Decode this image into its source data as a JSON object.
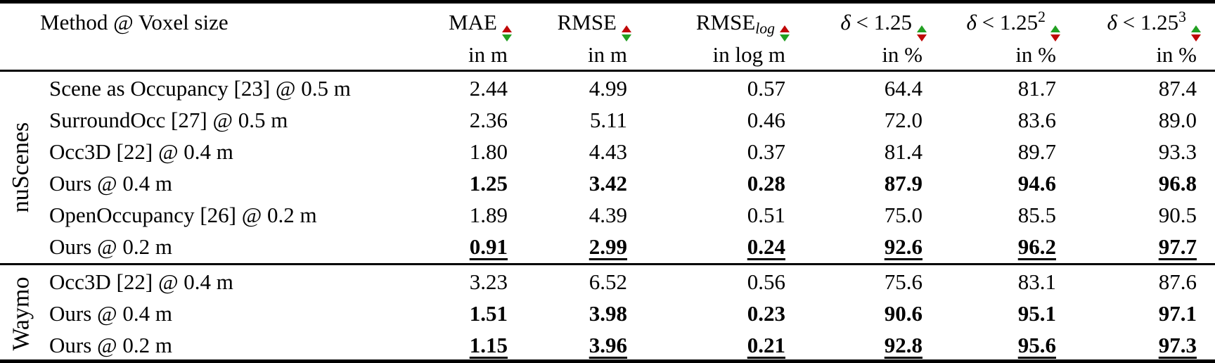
{
  "header": {
    "method_column_label": "Method @ Voxel size",
    "columns": [
      {
        "italic_part": "",
        "name": "MAE",
        "subscript": "",
        "superscript": "",
        "unit": "in m",
        "better": "lower"
      },
      {
        "italic_part": "",
        "name": "RMSE",
        "subscript": "",
        "superscript": "",
        "unit": "in m",
        "better": "lower"
      },
      {
        "italic_part": "",
        "name": "RMSE",
        "subscript": "log",
        "superscript": "",
        "unit": "in log m",
        "better": "lower"
      },
      {
        "italic_part": "δ",
        "name": " < 1.25",
        "subscript": "",
        "superscript": "",
        "unit": "in %",
        "better": "higher"
      },
      {
        "italic_part": "δ",
        "name": " < 1.25",
        "subscript": "",
        "superscript": "2",
        "unit": "in %",
        "better": "higher"
      },
      {
        "italic_part": "δ",
        "name": " < 1.25",
        "subscript": "",
        "superscript": "3",
        "unit": "in %",
        "better": "higher"
      }
    ]
  },
  "sections": [
    {
      "dataset": "nuScenes",
      "rows": [
        {
          "method": "Scene as Occupancy [23] @ 0.5 m",
          "values": [
            "2.44",
            "4.99",
            "0.57",
            "64.4",
            "81.7",
            "87.4"
          ],
          "style": "normal"
        },
        {
          "method": "SurroundOcc [27] @ 0.5 m",
          "values": [
            "2.36",
            "5.11",
            "0.46",
            "72.0",
            "83.6",
            "89.0"
          ],
          "style": "normal"
        },
        {
          "method": "Occ3D [22] @ 0.4 m",
          "values": [
            "1.80",
            "4.43",
            "0.37",
            "81.4",
            "89.7",
            "93.3"
          ],
          "style": "normal"
        },
        {
          "method": "Ours @ 0.4 m",
          "values": [
            "1.25",
            "3.42",
            "0.28",
            "87.9",
            "94.6",
            "96.8"
          ],
          "style": "bold"
        },
        {
          "method": "OpenOccupancy [26] @ 0.2 m",
          "values": [
            "1.89",
            "4.39",
            "0.51",
            "75.0",
            "85.5",
            "90.5"
          ],
          "style": "normal"
        },
        {
          "method": "Ours @ 0.2 m",
          "values": [
            "0.91",
            "2.99",
            "0.24",
            "92.6",
            "96.2",
            "97.7"
          ],
          "style": "bold-underline"
        }
      ]
    },
    {
      "dataset": "Waymo",
      "rows": [
        {
          "method": "Occ3D [22] @ 0.4 m",
          "values": [
            "3.23",
            "6.52",
            "0.56",
            "75.6",
            "83.1",
            "87.6"
          ],
          "style": "normal"
        },
        {
          "method": "Ours @ 0.4 m",
          "values": [
            "1.51",
            "3.98",
            "0.23",
            "90.6",
            "95.1",
            "97.1"
          ],
          "style": "bold"
        },
        {
          "method": "Ours @ 0.2 m",
          "values": [
            "1.15",
            "3.96",
            "0.21",
            "92.8",
            "95.6",
            "97.3"
          ],
          "style": "bold-underline"
        }
      ]
    }
  ],
  "colors": {
    "arrow_red": "#c00707",
    "arrow_green": "#22a022",
    "rule": "#000000",
    "text": "#000000",
    "background": "#ffffff"
  }
}
